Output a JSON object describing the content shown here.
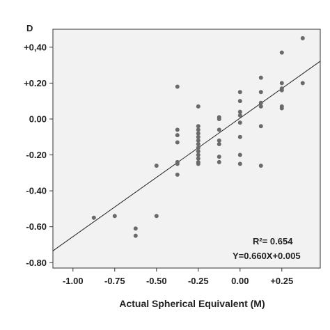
{
  "chart_data": {
    "type": "scatter",
    "panel_label": "D",
    "xlabel": "Actual Spherical Equivalent (M)",
    "ylabel": "",
    "xlim": [
      -1.12,
      0.48
    ],
    "ylim": [
      -0.83,
      0.5
    ],
    "x_ticks": [
      -1.0,
      -0.75,
      -0.5,
      -0.25,
      0.0,
      0.25
    ],
    "x_tick_labels": [
      "-1.00",
      "-0.75",
      "-0.50",
      "-0.25",
      "0.00",
      "+0.25"
    ],
    "y_ticks": [
      0.4,
      0.2,
      0.0,
      -0.2,
      -0.4,
      -0.6,
      -0.8
    ],
    "y_tick_labels": [
      "+0,40",
      "+0.20",
      "0.00",
      "-0.20",
      "-0.40",
      "-0.60",
      "-0.80"
    ],
    "grid": false,
    "colors": {
      "points": "#6a6a6a",
      "line": "#222222",
      "background": "#f2f2f2"
    },
    "points": [
      {
        "x": -0.875,
        "y": -0.55
      },
      {
        "x": -0.75,
        "y": -0.54
      },
      {
        "x": -0.625,
        "y": -0.61
      },
      {
        "x": -0.625,
        "y": -0.65
      },
      {
        "x": -0.5,
        "y": -0.26
      },
      {
        "x": -0.5,
        "y": -0.54
      },
      {
        "x": -0.375,
        "y": 0.18
      },
      {
        "x": -0.375,
        "y": -0.06
      },
      {
        "x": -0.375,
        "y": -0.09
      },
      {
        "x": -0.375,
        "y": -0.13
      },
      {
        "x": -0.375,
        "y": -0.24
      },
      {
        "x": -0.375,
        "y": -0.25
      },
      {
        "x": -0.375,
        "y": -0.31
      },
      {
        "x": -0.25,
        "y": 0.07
      },
      {
        "x": -0.25,
        "y": -0.04
      },
      {
        "x": -0.25,
        "y": -0.06
      },
      {
        "x": -0.25,
        "y": -0.08
      },
      {
        "x": -0.25,
        "y": -0.1
      },
      {
        "x": -0.25,
        "y": -0.12
      },
      {
        "x": -0.25,
        "y": -0.14
      },
      {
        "x": -0.25,
        "y": -0.16
      },
      {
        "x": -0.25,
        "y": -0.18
      },
      {
        "x": -0.25,
        "y": -0.2
      },
      {
        "x": -0.25,
        "y": -0.22
      },
      {
        "x": -0.25,
        "y": -0.24
      },
      {
        "x": -0.25,
        "y": -0.25
      },
      {
        "x": -0.125,
        "y": 0.01
      },
      {
        "x": -0.125,
        "y": 0.0
      },
      {
        "x": -0.125,
        "y": -0.06
      },
      {
        "x": -0.125,
        "y": -0.12
      },
      {
        "x": -0.125,
        "y": -0.14
      },
      {
        "x": -0.125,
        "y": -0.21
      },
      {
        "x": -0.125,
        "y": -0.24
      },
      {
        "x": 0.0,
        "y": 0.15
      },
      {
        "x": 0.0,
        "y": 0.1
      },
      {
        "x": 0.0,
        "y": 0.04
      },
      {
        "x": 0.0,
        "y": 0.02
      },
      {
        "x": 0.0,
        "y": -0.02
      },
      {
        "x": 0.0,
        "y": -0.1
      },
      {
        "x": 0.0,
        "y": -0.2
      },
      {
        "x": 0.0,
        "y": -0.25
      },
      {
        "x": 0.125,
        "y": 0.23
      },
      {
        "x": 0.125,
        "y": 0.15
      },
      {
        "x": 0.125,
        "y": 0.09
      },
      {
        "x": 0.125,
        "y": 0.07
      },
      {
        "x": 0.125,
        "y": -0.04
      },
      {
        "x": 0.125,
        "y": -0.26
      },
      {
        "x": 0.25,
        "y": 0.37
      },
      {
        "x": 0.25,
        "y": 0.2
      },
      {
        "x": 0.25,
        "y": 0.17
      },
      {
        "x": 0.25,
        "y": 0.16
      },
      {
        "x": 0.25,
        "y": 0.07
      },
      {
        "x": 0.25,
        "y": 0.06
      },
      {
        "x": 0.375,
        "y": 0.45
      },
      {
        "x": 0.375,
        "y": 0.2
      }
    ],
    "fit_line": {
      "slope": 0.66,
      "intercept": 0.005
    },
    "annotations": {
      "r2": "R²= 0.654",
      "equation": "Y=0.660X+0.005"
    }
  }
}
